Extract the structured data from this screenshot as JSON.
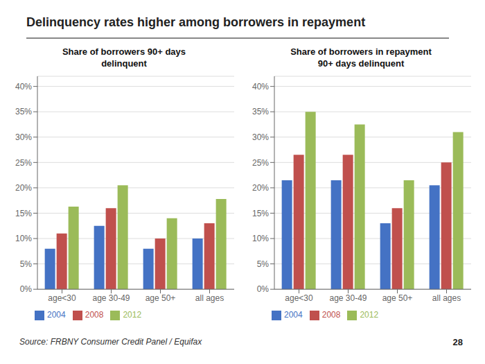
{
  "title": "Delinquency rates higher among borrowers in repayment",
  "annotations": [
    "Source: FRBNY Consumer Credit Panel / Equifax",
    "28"
  ],
  "chart_data": [
    {
      "type": "bar",
      "title": "Share of borrowers 90+ days\ndelinquent",
      "categories": [
        "age<30",
        "age 30-49",
        "age 50+",
        "all ages"
      ],
      "series": [
        {
          "name": "2004",
          "color": "#4472C4",
          "values": [
            0.08,
            0.125,
            0.08,
            0.1
          ]
        },
        {
          "name": "2008",
          "color": "#C0504D",
          "values": [
            0.11,
            0.16,
            0.1,
            0.13
          ]
        },
        {
          "name": "2012",
          "color": "#9BBB59",
          "values": [
            0.163,
            0.205,
            0.14,
            0.178
          ]
        }
      ],
      "ylim": [
        0,
        0.42
      ],
      "yticks": [
        {
          "value": 0.0,
          "label": "0%"
        },
        {
          "value": 0.05,
          "label": "5%"
        },
        {
          "value": 0.1,
          "label": "10%"
        },
        {
          "value": 0.15,
          "label": "15%"
        },
        {
          "value": 0.2,
          "label": "20%"
        },
        {
          "value": 0.25,
          "label": "25%"
        },
        {
          "value": 0.3,
          "label": "30%"
        },
        {
          "value": 0.35,
          "label": "35%"
        },
        {
          "value": 0.4,
          "label": "40%"
        }
      ],
      "grid": true,
      "legend": "bottom"
    },
    {
      "type": "bar",
      "title": "Share of borrowers in repayment\n90+ days delinquent",
      "categories": [
        "age<30",
        "age 30-49",
        "age 50+",
        "all ages"
      ],
      "series": [
        {
          "name": "2004",
          "color": "#4472C4",
          "values": [
            0.215,
            0.215,
            0.13,
            0.205
          ]
        },
        {
          "name": "2008",
          "color": "#C0504D",
          "values": [
            0.265,
            0.265,
            0.16,
            0.25
          ]
        },
        {
          "name": "2012",
          "color": "#9BBB59",
          "values": [
            0.35,
            0.325,
            0.215,
            0.31
          ]
        }
      ],
      "ylim": [
        0,
        0.42
      ],
      "yticks": [
        {
          "value": 0.0,
          "label": "0%"
        },
        {
          "value": 0.05,
          "label": "5%"
        },
        {
          "value": 0.1,
          "label": "10%"
        },
        {
          "value": 0.15,
          "label": "15%"
        },
        {
          "value": 0.2,
          "label": "20%"
        },
        {
          "value": 0.25,
          "label": "25%"
        },
        {
          "value": 0.3,
          "label": "30%"
        },
        {
          "value": 0.35,
          "label": "35%"
        },
        {
          "value": 0.4,
          "label": "40%"
        }
      ],
      "grid": true,
      "legend": "bottom"
    }
  ]
}
